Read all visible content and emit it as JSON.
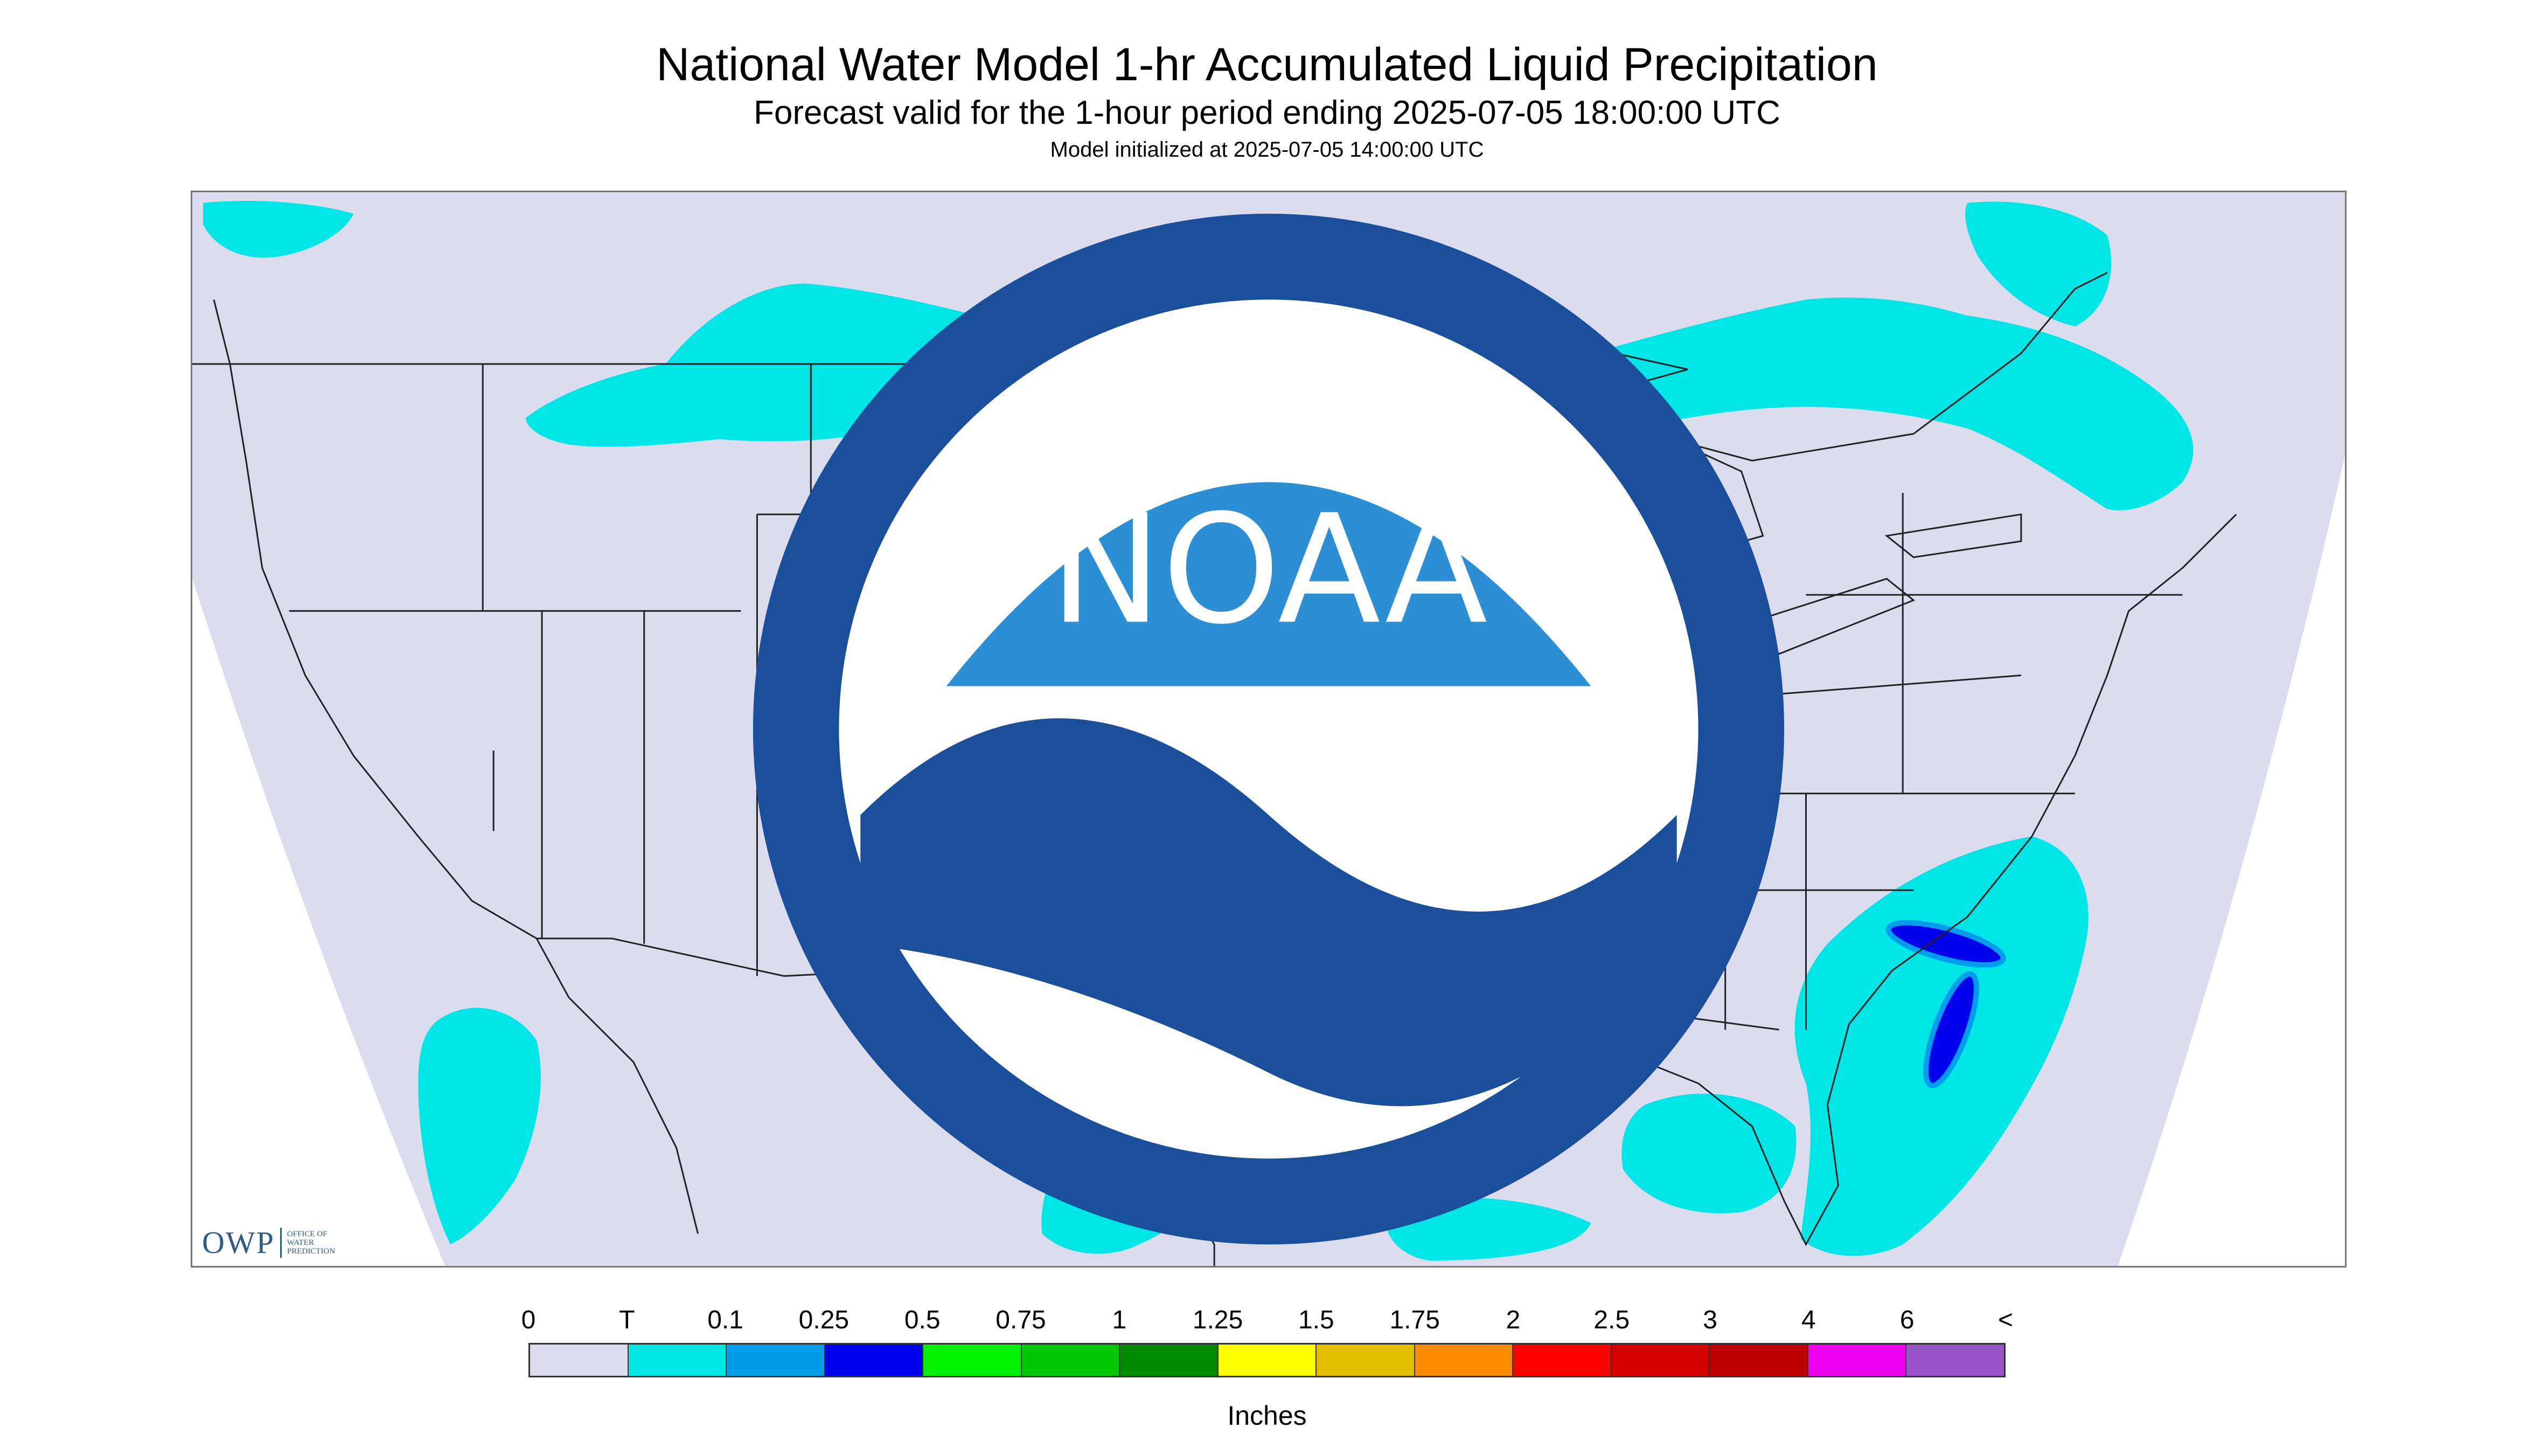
{
  "header": {
    "title": "National Water Model 1-hr Accumulated Liquid Precipitation",
    "subtitle": "Forecast valid for the 1-hour period ending 2025-07-05 18:00:00 UTC",
    "initialized": "Model initialized at 2025-07-05 14:00:00 UTC"
  },
  "map": {
    "background_color": "#dcdcef",
    "outside_color": "#ffffff",
    "boundary_color": "#222222",
    "logos": {
      "owp_letters": "OWP",
      "owp_line1": "OFFICE OF",
      "owp_line2": "WATER",
      "owp_line3": "PREDICTION",
      "noaa_text": "NOAA",
      "owp_icon": "owp-logo-icon",
      "noaa_icon": "noaa-logo-icon"
    }
  },
  "legend": {
    "labels": [
      "0",
      "T",
      "0.1",
      "0.25",
      "0.5",
      "0.75",
      "1",
      "1.25",
      "1.5",
      "1.75",
      "2",
      "2.5",
      "3",
      "4",
      "6",
      "<"
    ],
    "colors": [
      "#dcdcef",
      "#00e5e5",
      "#009ded",
      "#0000ed",
      "#00f000",
      "#00c800",
      "#008c00",
      "#ffff00",
      "#e5bd00",
      "#ff8c00",
      "#ff0000",
      "#d70000",
      "#bd0000",
      "#f000f0",
      "#9955c9"
    ],
    "unit": "Inches"
  }
}
